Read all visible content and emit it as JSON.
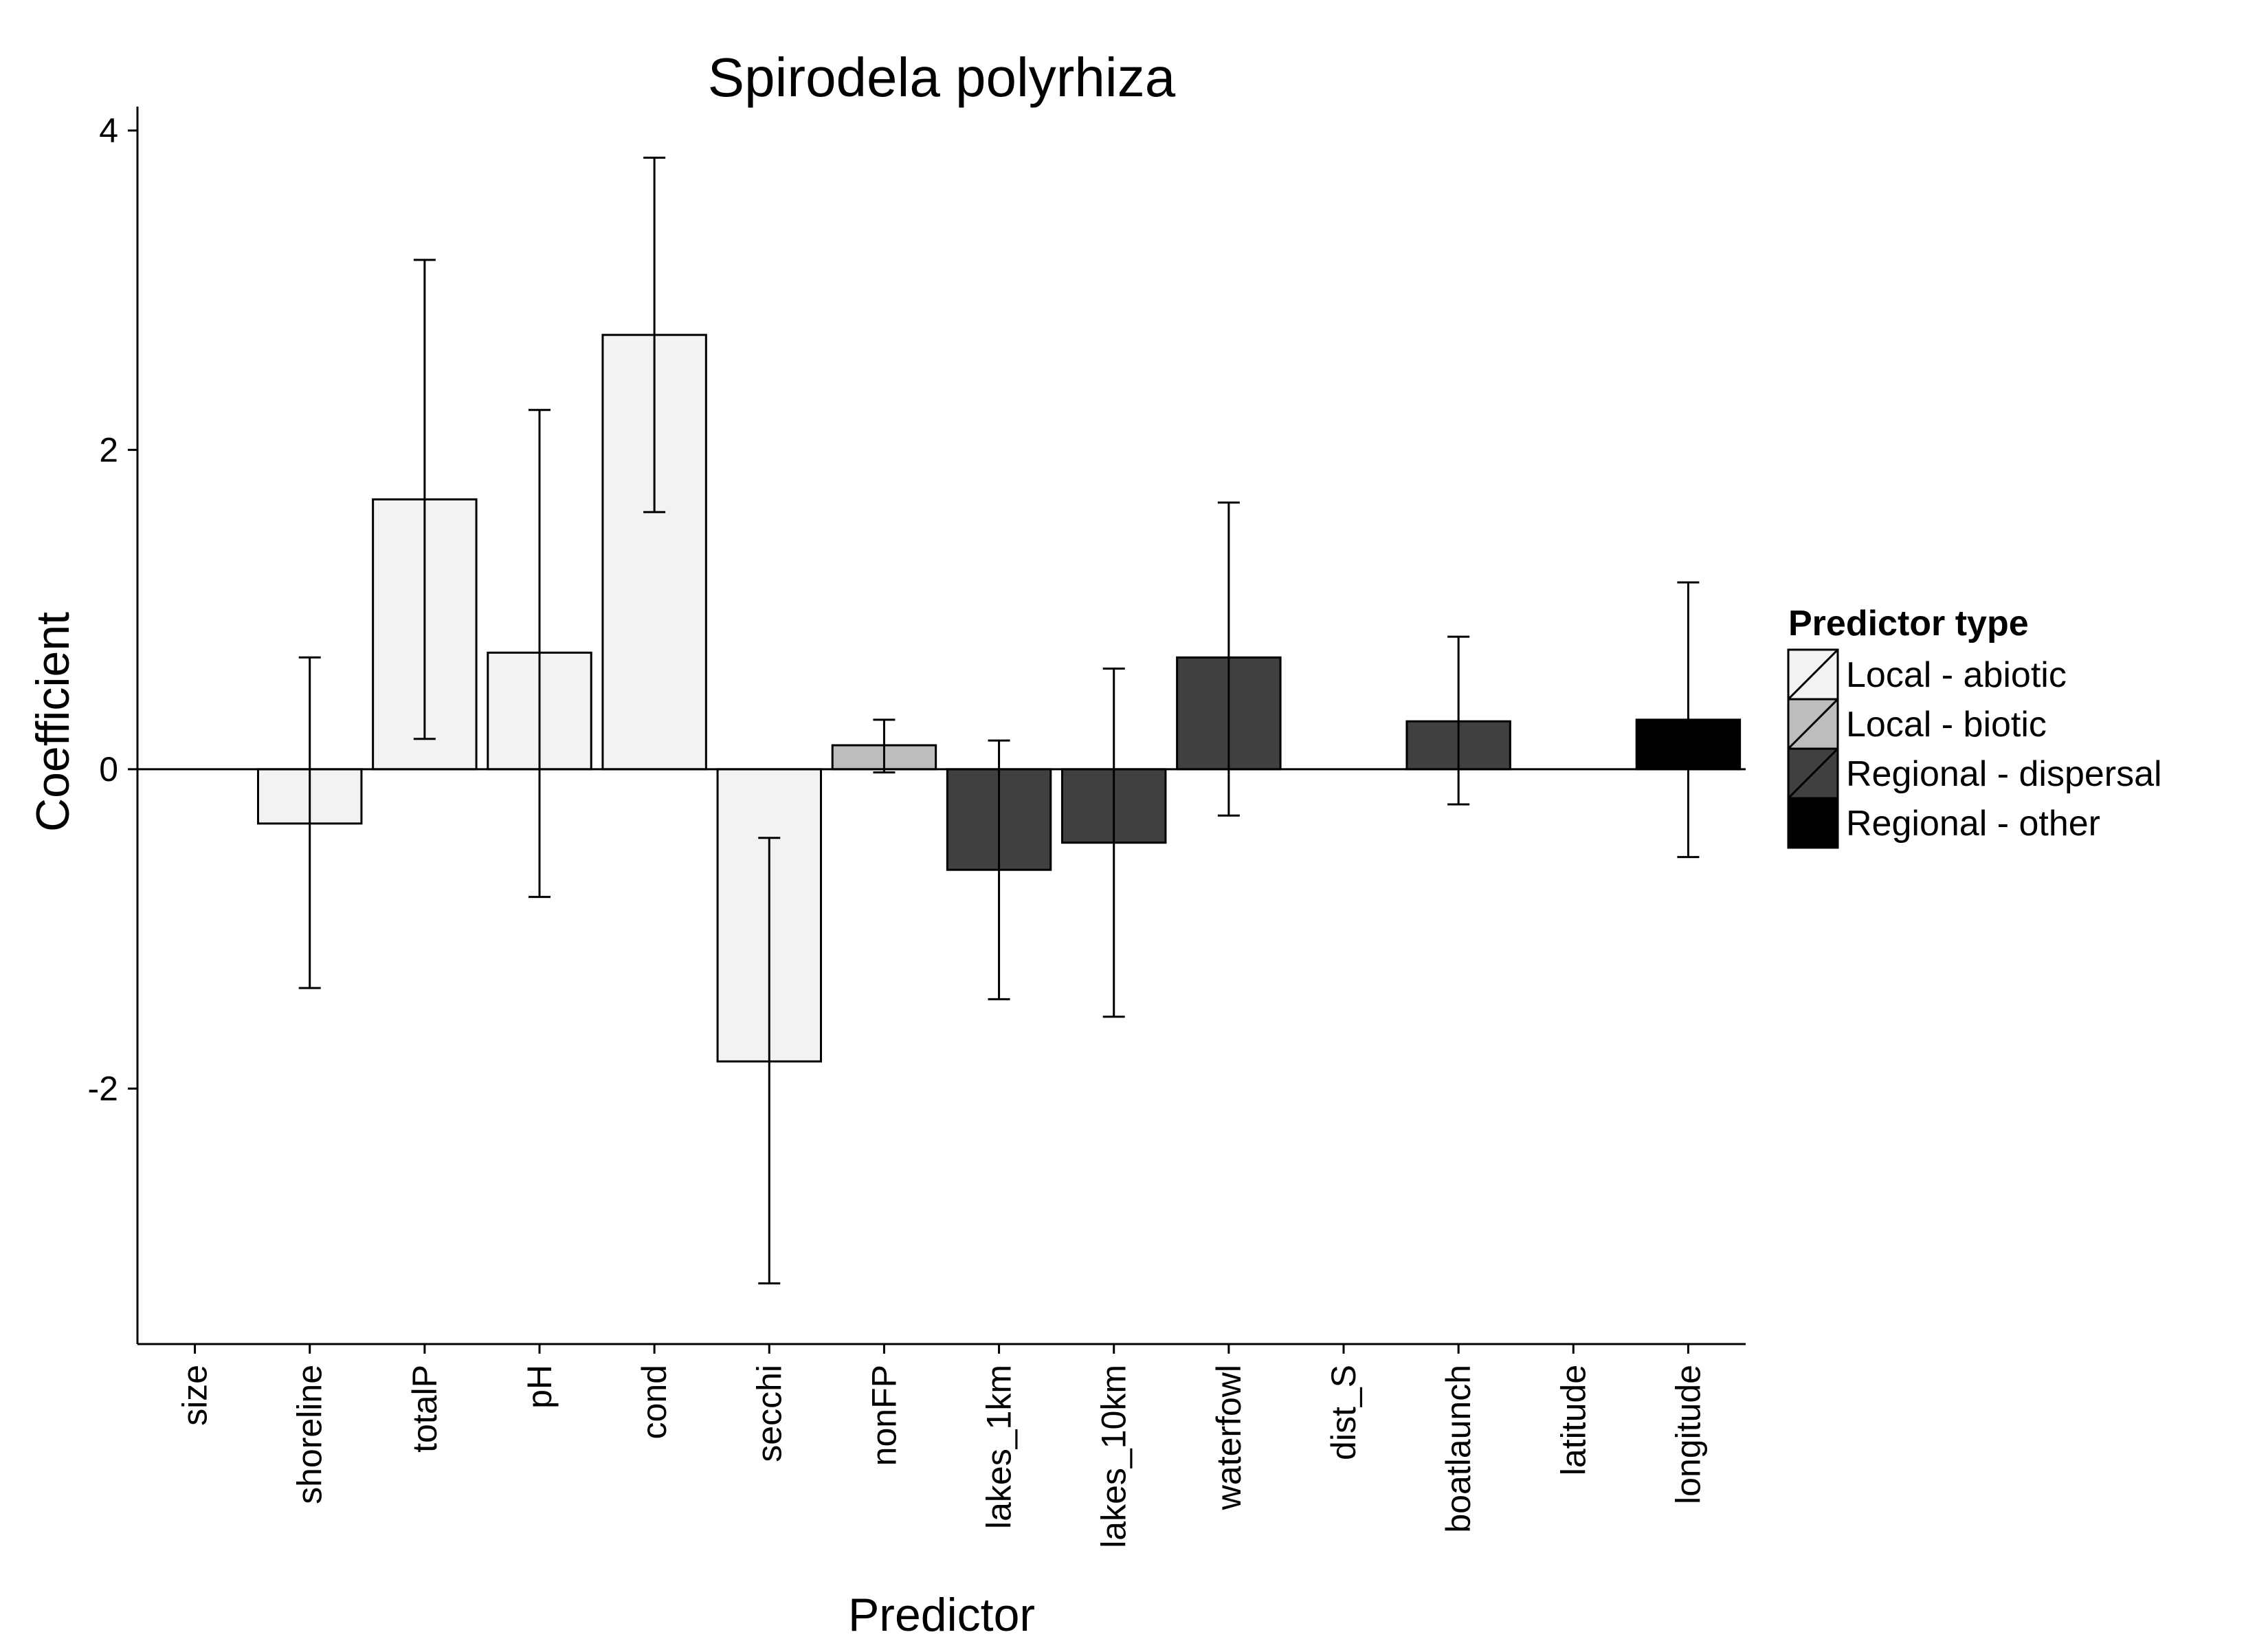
{
  "chart_data": {
    "type": "bar",
    "title": "Spirodela polyrhiza",
    "xlabel": "Predictor",
    "ylabel": "Coefficient",
    "ylim": [
      -3.6,
      4.15
    ],
    "yticks": [
      4,
      2,
      0,
      -2
    ],
    "ytick_labels": [
      "4",
      "2",
      "0",
      "-2"
    ],
    "grid": false,
    "categories": [
      "size",
      "shoreline",
      "totalP",
      "pH",
      "cond",
      "secchi",
      "nonFP",
      "lakes_1km",
      "lakes_10km",
      "waterfowl",
      "dist_S",
      "boatlaunch",
      "latitude",
      "longitude"
    ],
    "values": [
      0,
      -0.34,
      1.69,
      0.73,
      2.72,
      -1.83,
      0.15,
      -0.63,
      -0.46,
      0.7,
      0,
      0.3,
      0,
      0.31
    ],
    "error_lower": [
      null,
      -1.37,
      0.19,
      -0.8,
      1.61,
      -3.22,
      -0.02,
      -1.44,
      -1.55,
      -0.29,
      null,
      -0.22,
      null,
      -0.55
    ],
    "error_upper": [
      null,
      0.7,
      3.19,
      2.25,
      3.83,
      -0.43,
      0.31,
      0.18,
      0.63,
      1.67,
      null,
      0.83,
      null,
      1.17
    ],
    "group": [
      "Local - abiotic",
      "Local - abiotic",
      "Local - abiotic",
      "Local - abiotic",
      "Local - abiotic",
      "Local - abiotic",
      "Local - biotic",
      "Regional - dispersal",
      "Regional - dispersal",
      "Regional - dispersal",
      "Regional - dispersal",
      "Regional - dispersal",
      "Regional - other",
      "Regional - other"
    ],
    "legend": {
      "title": "Predictor type",
      "placement": "right",
      "items": [
        {
          "label": "Local - abiotic",
          "color": "#f2f2f2",
          "slash": "#000000"
        },
        {
          "label": "Local - biotic",
          "color": "#bdbdbd",
          "slash": "#000000"
        },
        {
          "label": "Regional - dispersal",
          "color": "#404040",
          "slash": "#000000"
        },
        {
          "label": "Regional - other",
          "color": "#000000",
          "slash": "#000000"
        }
      ]
    },
    "colors": {
      "Local - abiotic": "#f2f2f2",
      "Local - biotic": "#bdbdbd",
      "Regional - dispersal": "#404040",
      "Regional - other": "#000000"
    }
  }
}
